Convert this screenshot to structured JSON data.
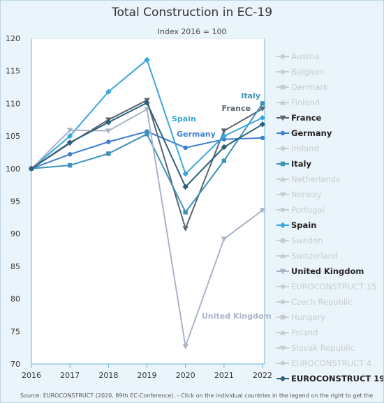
{
  "chart_data": {
    "type": "line",
    "title": "Total Construction in EC-19",
    "subtitle": "Index 2016 = 100",
    "x": [
      "2016",
      "2017",
      "2018",
      "2019",
      "2020",
      "2021",
      "2022"
    ],
    "y_ticks": [
      "70",
      "75",
      "80",
      "85",
      "90",
      "95",
      "100",
      "105",
      "110",
      "115",
      "120"
    ],
    "ylim": [
      70,
      120
    ],
    "grid": false,
    "legend_position": "right",
    "series": [
      {
        "name": "France",
        "color": "#5a6570",
        "marker": "triangle-down",
        "values": [
          100,
          103.9,
          107.5,
          110.5,
          90.8,
          105.8,
          109.2
        ]
      },
      {
        "name": "Germany",
        "color": "#3f7fd0",
        "marker": "circle",
        "values": [
          100,
          102.2,
          104.1,
          105.7,
          103.2,
          104.5,
          104.7
        ]
      },
      {
        "name": "Italy",
        "color": "#3d93b8",
        "marker": "square",
        "values": [
          100,
          100.5,
          102.3,
          105.3,
          93.3,
          101.2,
          110
        ]
      },
      {
        "name": "Spain",
        "color": "#3aa6dd",
        "marker": "diamond",
        "values": [
          100,
          105,
          111.8,
          116.7,
          99.2,
          105,
          107.8
        ]
      },
      {
        "name": "United Kingdom",
        "color": "#aab4c8",
        "marker": "triangle-down",
        "values": [
          100,
          105.9,
          105.8,
          109.1,
          72.7,
          89.2,
          93.6
        ]
      },
      {
        "name": "EUROCONSTRUCT 19",
        "color": "#2c5f7c",
        "marker": "diamond",
        "values": [
          100,
          104,
          107.1,
          110.1,
          97.2,
          103.3,
          106.8
        ]
      }
    ],
    "annotations": [
      {
        "text": "Italy",
        "color": "#3d93b8"
      },
      {
        "text": "France",
        "color": "#5a6570"
      },
      {
        "text": "Spain",
        "color": "#3aa6dd"
      },
      {
        "text": "Germany",
        "color": "#3f7fd0"
      },
      {
        "text": "United Kingdom",
        "color": "#aab4c8"
      }
    ],
    "legend": [
      {
        "label": "Austria",
        "active": false,
        "marker": "circle"
      },
      {
        "label": "Belgium",
        "active": false,
        "marker": "diamond"
      },
      {
        "label": "Denmark",
        "active": false,
        "marker": "square"
      },
      {
        "label": "Finland",
        "active": false,
        "marker": "triangle-up"
      },
      {
        "label": "France",
        "active": true,
        "marker": "triangle-down",
        "color": "#5a6570"
      },
      {
        "label": "Germany",
        "active": true,
        "marker": "circle",
        "color": "#3f7fd0"
      },
      {
        "label": "Ireland",
        "active": false,
        "marker": "diamond"
      },
      {
        "label": "Italy",
        "active": true,
        "marker": "square",
        "color": "#3d93b8"
      },
      {
        "label": "Netherlands",
        "active": false,
        "marker": "triangle-up"
      },
      {
        "label": "Norway",
        "active": false,
        "marker": "triangle-down"
      },
      {
        "label": "Portugal",
        "active": false,
        "marker": "circle"
      },
      {
        "label": "Spain",
        "active": true,
        "marker": "diamond",
        "color": "#3aa6dd"
      },
      {
        "label": "Sweden",
        "active": false,
        "marker": "square"
      },
      {
        "label": "Switzerland",
        "active": false,
        "marker": "triangle-up"
      },
      {
        "label": "United Kingdom",
        "active": true,
        "marker": "triangle-down",
        "color": "#aab4c8"
      },
      {
        "label": "EUROCONSTRUCT 15",
        "active": false,
        "marker": "circle"
      },
      {
        "label": "Czech Republic",
        "active": false,
        "marker": "diamond"
      },
      {
        "label": "Hungary",
        "active": false,
        "marker": "square"
      },
      {
        "label": "Poland",
        "active": false,
        "marker": "triangle-up"
      },
      {
        "label": "Slovak Republic",
        "active": false,
        "marker": "triangle-down"
      },
      {
        "label": "EUROCONSTRUCT 4",
        "active": false,
        "marker": "circle"
      },
      {
        "label": "EUROCONSTRUCT 19",
        "active": true,
        "marker": "diamond",
        "color": "#2c5f7c"
      }
    ],
    "source": "Source: EUROCONSTRUCT (2020, 89th EC-Conference). - Click on the individual countries in the legend on the right to get the"
  },
  "colors": {
    "background": "#eaf4fb",
    "plot_background": "#ffffff",
    "axis": "#6ab3d8",
    "legend_inactive": "#c8ccd2",
    "legend_active": "#222222"
  }
}
